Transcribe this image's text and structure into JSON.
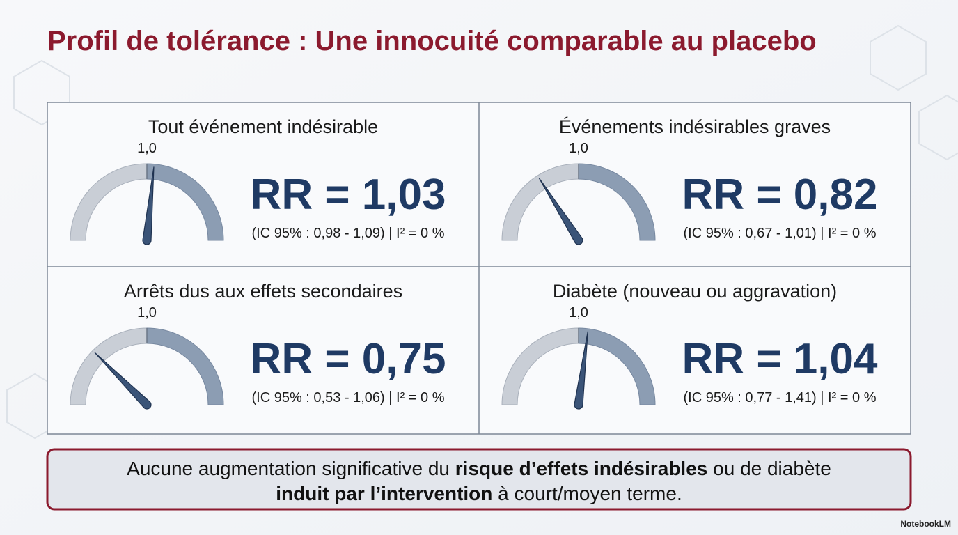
{
  "title": "Profil de tolérance : Une innocuité comparable au placebo",
  "gauge_lim": [
    0.5,
    1.5
  ],
  "panels": [
    {
      "title": "Tout événement indésirable",
      "tick": {
        "value": 1,
        "label": "1,0"
      },
      "value": 1.03,
      "value_label": "RR = 1,03",
      "ci": "(IC 95% : 0,98 - 1,09) | I² = 0 %"
    },
    {
      "title": "Événements indésirables graves",
      "tick": {
        "value": 1,
        "label": "1,0"
      },
      "value": 0.82,
      "value_label": "RR = 0,82",
      "ci": "(IC 95% : 0,67 - 1,01) | I² = 0 %"
    },
    {
      "title": "Arrêts dus aux effets secondaires",
      "tick": {
        "value": 1,
        "label": "1,0"
      },
      "value": 0.75,
      "value_label": "RR = 0,75",
      "ci": "(IC 95% : 0,53 - 1,06) | I² = 0 %"
    },
    {
      "title": "Diabète (nouveau ou aggravation)",
      "tick": {
        "value": 1,
        "label": "1,0"
      },
      "value": 1.04,
      "value_label": "RR = 1,04",
      "ci": "(IC 95% : 0,77 - 1,41) | I² = 0 %"
    }
  ],
  "conclusion": {
    "lines": [
      [
        {
          "text": "Aucune augmentation significative du ",
          "bold": false
        },
        {
          "text": "risque d’effets indésirables",
          "bold": true
        },
        {
          "text": " ou de diabète",
          "bold": false
        }
      ],
      [
        {
          "text": "induit par l’intervention",
          "bold": true
        },
        {
          "text": " à court/moyen terme.",
          "bold": false
        }
      ]
    ]
  },
  "footer": "NotebookLM"
}
